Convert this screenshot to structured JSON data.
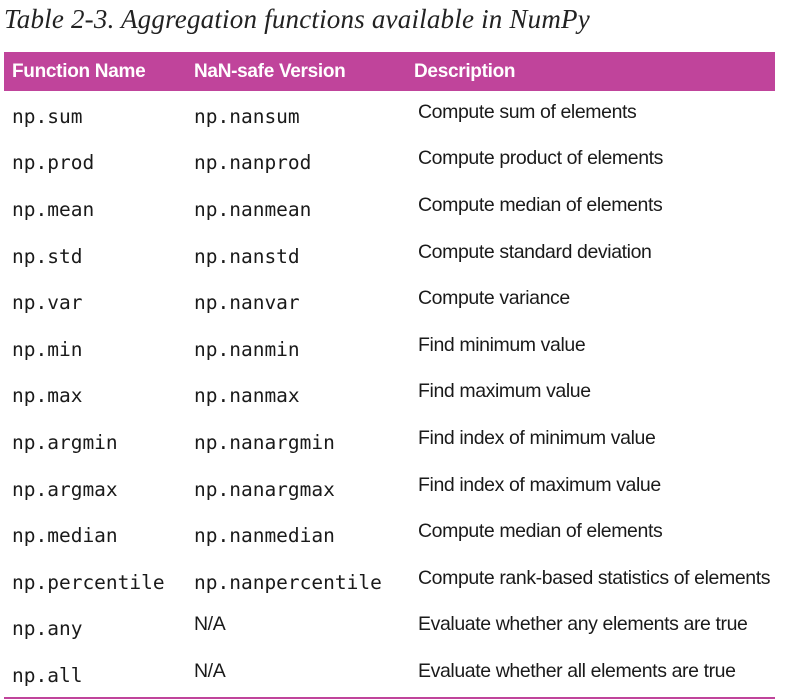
{
  "caption": "Table 2-3. Aggregation functions available in NumPy",
  "columns": [
    "Function Name",
    "NaN-safe Version",
    "Description"
  ],
  "rows": [
    {
      "function": "np.sum",
      "nan_safe": "np.nansum",
      "description": "Compute sum of elements"
    },
    {
      "function": "np.prod",
      "nan_safe": "np.nanprod",
      "description": "Compute product of elements"
    },
    {
      "function": "np.mean",
      "nan_safe": "np.nanmean",
      "description": "Compute median of elements"
    },
    {
      "function": "np.std",
      "nan_safe": "np.nanstd",
      "description": "Compute standard deviation"
    },
    {
      "function": "np.var",
      "nan_safe": "np.nanvar",
      "description": "Compute variance"
    },
    {
      "function": "np.min",
      "nan_safe": "np.nanmin",
      "description": "Find minimum value"
    },
    {
      "function": "np.max",
      "nan_safe": "np.nanmax",
      "description": "Find maximum value"
    },
    {
      "function": "np.argmin",
      "nan_safe": "np.nanargmin",
      "description": "Find index of minimum value"
    },
    {
      "function": "np.argmax",
      "nan_safe": "np.nanargmax",
      "description": "Find index of maximum value"
    },
    {
      "function": "np.median",
      "nan_safe": "np.nanmedian",
      "description": "Compute median of elements"
    },
    {
      "function": "np.percentile",
      "nan_safe": "np.nanpercentile",
      "description": "Compute rank-based statistics of elements"
    },
    {
      "function": "np.any",
      "nan_safe": "N/A",
      "description": "Evaluate whether any elements are true"
    },
    {
      "function": "np.all",
      "nan_safe": "N/A",
      "description": "Evaluate whether all elements are true"
    }
  ],
  "colors": {
    "header_background": "#c0449b",
    "header_text": "#ffffff",
    "rule": "#c0449b"
  }
}
